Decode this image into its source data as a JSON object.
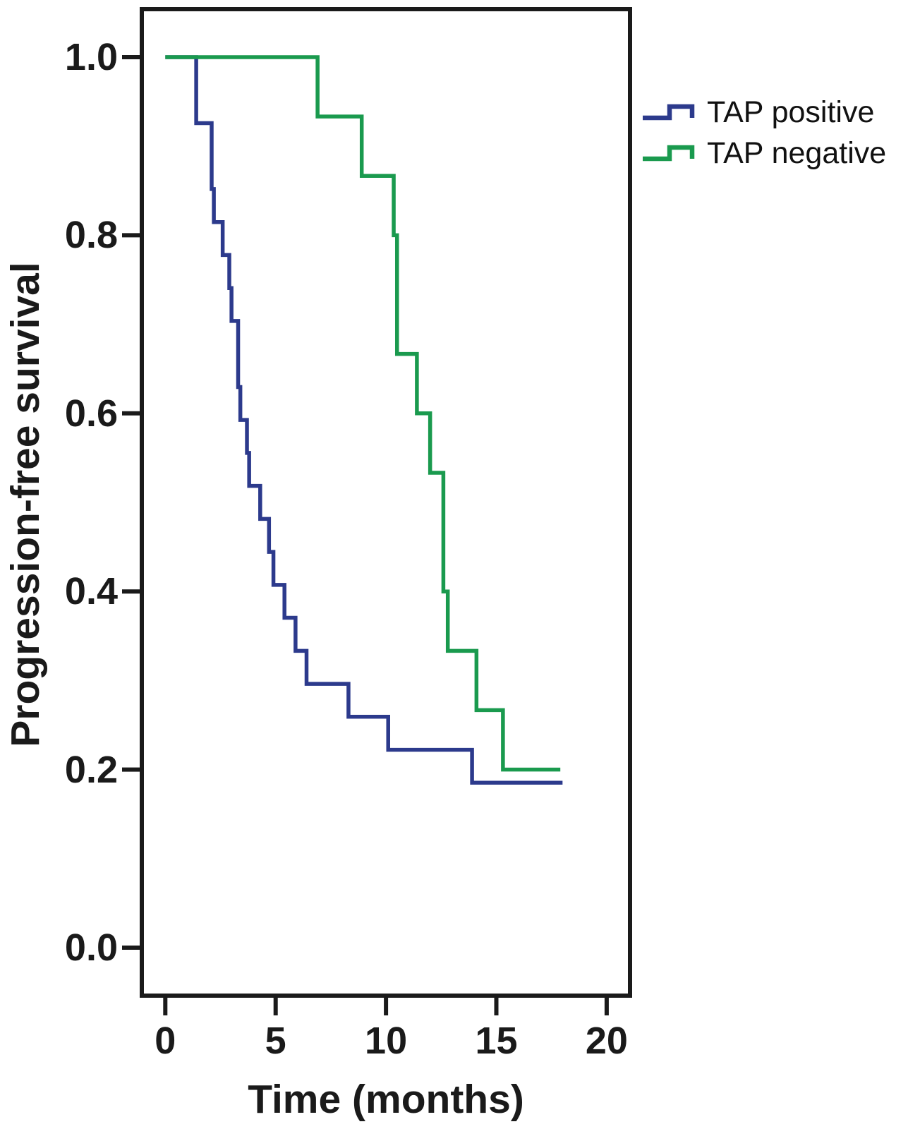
{
  "figure": {
    "background": "#ffffff",
    "frame_color": "#1a1a1a"
  },
  "chart_data": {
    "type": "line",
    "subtype": "kaplan-meier-step",
    "title": "",
    "xlabel": "Time (months)",
    "ylabel": "Progression-free survival",
    "grid": "off",
    "legend_position": "outside-upper-right",
    "axes": {
      "x": {
        "label": "Time (months)",
        "tick_labels": [
          "0",
          "5",
          "10",
          "15",
          "20"
        ],
        "tick_values": [
          0,
          5,
          10,
          15,
          20
        ],
        "range": [
          0,
          20
        ]
      },
      "y": {
        "label": "Progression-free survival",
        "tick_labels": [
          "1.0",
          "0.8",
          "0.6",
          "0.4",
          "0.2",
          "0.0"
        ],
        "tick_values": [
          1.0,
          0.8,
          0.6,
          0.4,
          0.2,
          0.0
        ],
        "range": [
          0.0,
          1.0
        ]
      }
    },
    "series": [
      {
        "name": "TAP positive",
        "color": "#2c3a8c",
        "start": [
          0,
          1.0
        ],
        "events": [
          [
            1.4,
            0.9259
          ],
          [
            2.1,
            0.8519
          ],
          [
            2.2,
            0.8148
          ],
          [
            2.6,
            0.7778
          ],
          [
            2.9,
            0.7407
          ],
          [
            3.0,
            0.7037
          ],
          [
            3.3,
            0.6296
          ],
          [
            3.4,
            0.5926
          ],
          [
            3.7,
            0.5556
          ],
          [
            3.8,
            0.5185
          ],
          [
            4.3,
            0.4815
          ],
          [
            4.7,
            0.4444
          ],
          [
            4.9,
            0.4074
          ],
          [
            5.4,
            0.3704
          ],
          [
            5.9,
            0.3333
          ],
          [
            6.4,
            0.2963
          ],
          [
            8.3,
            0.2593
          ],
          [
            10.1,
            0.2222
          ],
          [
            13.9,
            0.1852
          ]
        ],
        "end_time": 18.0
      },
      {
        "name": "TAP negative",
        "color": "#1a9a4e",
        "start": [
          0,
          1.0
        ],
        "events": [
          [
            6.9,
            0.9333
          ],
          [
            8.9,
            0.8667
          ],
          [
            10.35,
            0.8
          ],
          [
            10.5,
            0.6667
          ],
          [
            11.4,
            0.6
          ],
          [
            12.0,
            0.5333
          ],
          [
            12.6,
            0.4
          ],
          [
            12.8,
            0.3333
          ],
          [
            14.1,
            0.2667
          ],
          [
            15.3,
            0.2
          ]
        ],
        "end_time": 17.9
      }
    ]
  }
}
